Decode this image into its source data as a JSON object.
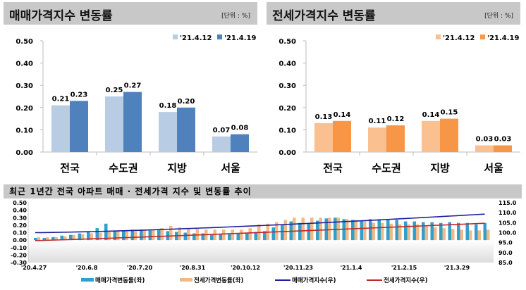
{
  "chart_data": [
    {
      "type": "bar",
      "title": "매매가격지수 변동률",
      "unit": "[단위 : %]",
      "categories": [
        "전국",
        "수도권",
        "지방",
        "서울"
      ],
      "series": [
        {
          "name": "'21.4.12",
          "values": [
            0.21,
            0.25,
            0.18,
            0.07
          ],
          "color": "#b8cce4"
        },
        {
          "name": "'21.4.19",
          "values": [
            0.23,
            0.27,
            0.2,
            0.08
          ],
          "color": "#4f81bd"
        }
      ],
      "ylim": [
        0,
        0.5
      ],
      "yticks": [
        "0.00",
        "0.10",
        "0.20",
        "0.30",
        "0.40",
        "0.50"
      ],
      "legend": "top-right"
    },
    {
      "type": "bar",
      "title": "전세가격지수 변동률",
      "unit": "[단위 : %]",
      "categories": [
        "전국",
        "수도권",
        "지방",
        "서울"
      ],
      "series": [
        {
          "name": "'21.4.12",
          "values": [
            0.13,
            0.11,
            0.14,
            0.03
          ],
          "color": "#fac090"
        },
        {
          "name": "'21.4.19",
          "values": [
            0.14,
            0.12,
            0.15,
            0.03
          ],
          "color": "#f79646"
        }
      ],
      "ylim": [
        0,
        0.5
      ],
      "yticks": [
        "0.00",
        "0.10",
        "0.20",
        "0.30",
        "0.40",
        "0.50"
      ],
      "legend": "top-right"
    },
    {
      "type": "bar+line",
      "title": "최근 1년간 전국 아파트 매매 · 전세가격 지수 및 변동률 추이",
      "xticks": [
        "'20.4.27",
        "'20.6.8",
        "'20.7.20",
        "'20.8.31",
        "'20.10.12",
        "'20.11.23",
        "'21.1.4",
        "'21.2.15",
        "'21.3.29"
      ],
      "ylim_left": [
        -0.3,
        0.5
      ],
      "yticks_left": [
        "0.50",
        "0.40",
        "0.30",
        "0.20",
        "0.10",
        "0.00",
        "-0.10",
        "-0.20",
        "-0.30"
      ],
      "ylim_right": [
        85,
        115
      ],
      "yticks_right": [
        "115.0",
        "110.0",
        "105.0",
        "100.0",
        "95.0",
        "90.0",
        "85.0"
      ],
      "series": [
        {
          "name": "매매가격변동률(좌)",
          "axis": "left",
          "kind": "bar",
          "color": "#31a0c8",
          "values": [
            0.03,
            0.03,
            0.04,
            0.06,
            0.07,
            0.09,
            0.11,
            0.16,
            0.22,
            0.12,
            0.13,
            0.14,
            0.14,
            0.13,
            0.14,
            0.12,
            0.11,
            0.1,
            0.09,
            0.09,
            0.08,
            0.08,
            0.08,
            0.09,
            0.09,
            0.11,
            0.12,
            0.17,
            0.21,
            0.25,
            0.23,
            0.23,
            0.26,
            0.29,
            0.3,
            0.28,
            0.27,
            0.25,
            0.28,
            0.28,
            0.28,
            0.27,
            0.25,
            0.25,
            0.24,
            0.24,
            0.23,
            0.24,
            0.23,
            0.23,
            0.21,
            0.23
          ]
        },
        {
          "name": "전세가격변동률(좌)",
          "axis": "left",
          "kind": "bar",
          "color": "#f0b98a",
          "values": [
            0.04,
            0.04,
            0.04,
            0.05,
            0.07,
            0.08,
            0.09,
            0.1,
            0.12,
            0.12,
            0.12,
            0.12,
            0.13,
            0.14,
            0.16,
            0.19,
            0.17,
            0.16,
            0.15,
            0.14,
            0.14,
            0.14,
            0.14,
            0.14,
            0.16,
            0.21,
            0.22,
            0.24,
            0.27,
            0.3,
            0.3,
            0.3,
            0.3,
            0.3,
            0.3,
            0.28,
            0.27,
            0.25,
            0.23,
            0.23,
            0.22,
            0.21,
            0.21,
            0.21,
            0.19,
            0.17,
            0.16,
            0.15,
            0.14,
            0.13,
            0.13,
            0.14
          ]
        },
        {
          "name": "매매가격지수(우)",
          "axis": "right",
          "kind": "line",
          "color": "#1f1fa0",
          "start": 100.0,
          "end": 109.3
        },
        {
          "name": "전세가격지수(우)",
          "axis": "right",
          "kind": "line",
          "color": "#c0282d",
          "start": 96.0,
          "end": 104.7
        }
      ],
      "legend": "bottom"
    }
  ]
}
